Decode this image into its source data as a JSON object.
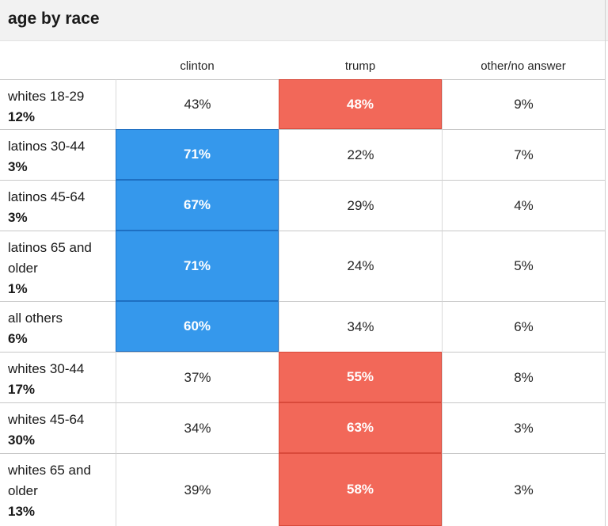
{
  "title": "age by race",
  "columns": [
    "clinton",
    "trump",
    "other/no answer"
  ],
  "colors": {
    "clinton": "#3598ec",
    "trump": "#f26859"
  },
  "rows": [
    {
      "label": "whites 18-29",
      "share": "12%",
      "values": [
        "43%",
        "48%",
        "9%"
      ],
      "winner": 1
    },
    {
      "label": "latinos 30-44",
      "share": "3%",
      "values": [
        "71%",
        "22%",
        "7%"
      ],
      "winner": 0
    },
    {
      "label": "latinos 45-64",
      "share": "3%",
      "values": [
        "67%",
        "29%",
        "4%"
      ],
      "winner": 0
    },
    {
      "label": "latinos 65 and older",
      "share": "1%",
      "values": [
        "71%",
        "24%",
        "5%"
      ],
      "winner": 0
    },
    {
      "label": "all others",
      "share": "6%",
      "values": [
        "60%",
        "34%",
        "6%"
      ],
      "winner": 0
    },
    {
      "label": "whites 30-44",
      "share": "17%",
      "values": [
        "37%",
        "55%",
        "8%"
      ],
      "winner": 1
    },
    {
      "label": "whites 45-64",
      "share": "30%",
      "values": [
        "34%",
        "63%",
        "3%"
      ],
      "winner": 1
    },
    {
      "label": "whites 65 and older",
      "share": "13%",
      "values": [
        "39%",
        "58%",
        "3%"
      ],
      "winner": 1
    }
  ]
}
